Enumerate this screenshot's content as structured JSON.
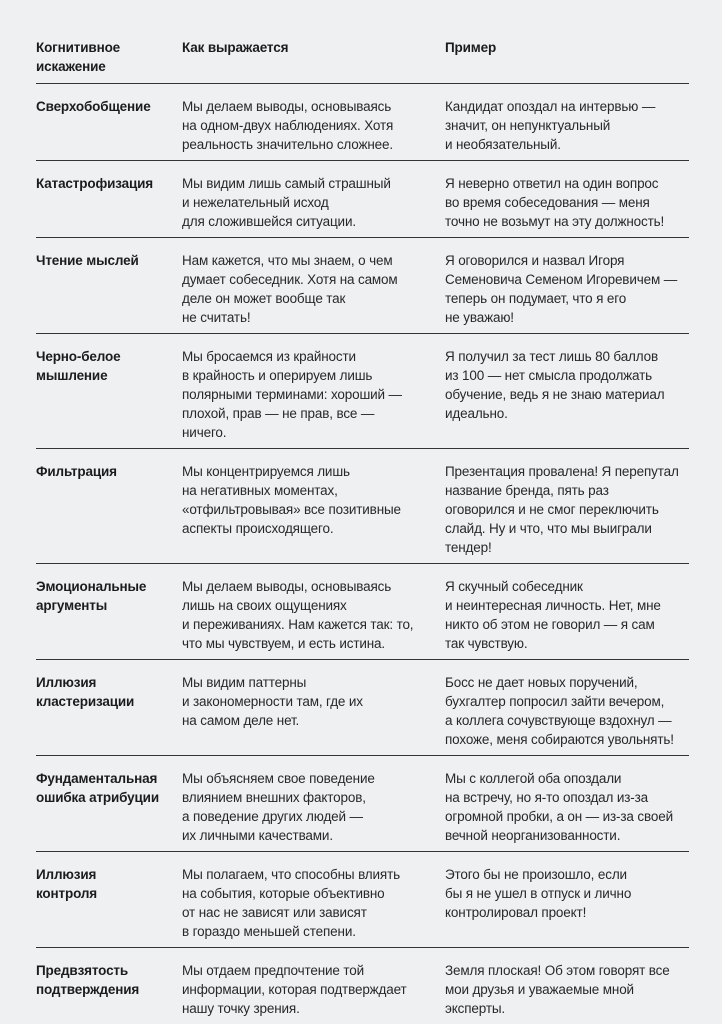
{
  "page": {
    "background_color": "#eff0f1",
    "rule_color": "#333436",
    "text_color": "#27282a",
    "heading_color": "#1b1c1e"
  },
  "table": {
    "columns": [
      "Когнитивное\nискажение",
      "Как выражается",
      "Пример"
    ],
    "rows": [
      {
        "name": "Сверхобобщение",
        "how": "Мы делаем выводы, основываясь\nна одном-двух наблюдениях. Хотя\nреальность значительно сложнее.",
        "example": "Кандидат опоздал на интервью —\nзначит, он непунктуальный\nи необязательный."
      },
      {
        "name": "Катастрофизация",
        "how": "Мы видим лишь самый страшный\nи нежелательный исход\nдля сложившейся ситуации.",
        "example": "Я неверно ответил на один вопрос\nво время собеседования — меня\nточно не возьмут на эту должность!"
      },
      {
        "name": "Чтение мыслей",
        "how": "Нам кажется, что мы знаем, о чем\nдумает собеседник. Хотя на самом\nделе он может вообще так\nне считать!",
        "example": "Я оговорился и назвал Игоря\nСеменовича Семеном Игоревичем —\nтеперь он подумает, что я его\nне уважаю!"
      },
      {
        "name": "Черно-белое\nмышление",
        "how": "Мы бросаемся из крайности\nв крайность и оперируем лишь\nполярными терминами: хороший —\nплохой, прав — не прав, все —\nничего.",
        "example": "Я получил за тест лишь 80 баллов\nиз 100 — нет смысла продолжать\nобучение, ведь я не знаю материал\nидеально."
      },
      {
        "name": "Фильтрация",
        "how": "Мы концентрируемся лишь\nна негативных моментах,\n«отфильтровывая» все позитивные\nаспекты происходящего.",
        "example": "Презентация провалена! Я перепутал\nназвание бренда, пять раз\nоговорился и не смог переключить\nслайд. Ну и что, что мы выиграли\nтендер!"
      },
      {
        "name": "Эмоциональные\nаргументы",
        "how": "Мы делаем выводы, основываясь\nлишь на своих ощущениях\nи переживаниях. Нам кажется так: то,\nчто мы чувствуем, и есть истина.",
        "example": "Я скучный собеседник\nи неинтересная личность. Нет, мне\nникто об этом не говорил — я сам\nтак чувствую."
      },
      {
        "name": "Иллюзия\nкластеризации",
        "how": "Мы видим паттерны\nи закономерности там, где их\nна самом деле нет.",
        "example": "Босс не дает новых поручений,\nбухгалтер попросил зайти вечером,\nа коллега сочувствующе вздохнул —\nпохоже, меня собираются увольнять!"
      },
      {
        "name": "Фундаментальная\nошибка атрибуции",
        "how": "Мы объясняем свое поведение\nвлиянием внешних факторов,\nа поведение других людей —\nих личными качествами.",
        "example": "Мы с коллегой оба опоздали\nна встречу, но я-то опоздал из-за\nогромной пробки, а он — из-за своей\nвечной неорганизованности."
      },
      {
        "name": "Иллюзия\nконтроля",
        "how": "Мы полагаем, что способны влиять\nна события, которые объективно\nот нас не зависят или зависят\nв гораздо меньшей степени.",
        "example": "Этого бы не произошло, если\nбы я не ушел в отпуск и лично\nконтролировал проект!"
      },
      {
        "name": "Предвзятость\nподтверждения",
        "how": "Мы отдаем предпочтение той\nинформации, которая подтверждает\nнашу точку зрения.",
        "example": "Земля плоская! Об этом говорят все\nмои друзья и уважаемые мной\nэксперты."
      }
    ]
  }
}
